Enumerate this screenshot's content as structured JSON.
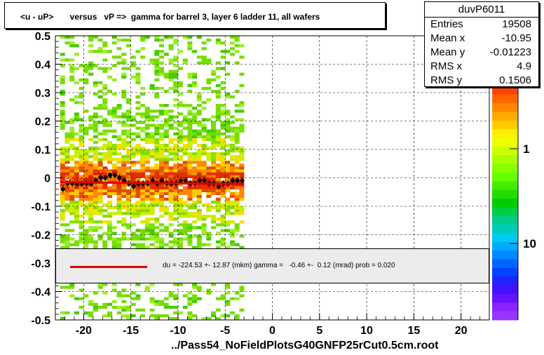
{
  "title": "<u - uP>       versus   vP =>  gamma for barrel 3, layer 6 ladder 11, all wafers",
  "stats": {
    "name": "duvP6011",
    "entries_label": "Entries",
    "entries": "19508",
    "meanx_label": "Mean x",
    "meanx": "-10.95",
    "meany_label": "Mean y",
    "meany": "-0.01223",
    "rmsx_label": "RMS x",
    "rmsx": "4.9",
    "rmsy_label": "RMS y",
    "rmsy": "0.1506"
  },
  "fit_text": "du = -224.53 +- 12.87 (mkm) gamma =   -0.46 +-  0.12 (mrad) prob = 0.020",
  "xlabel": "../Pass54_NoFieldPlotsG40GNFP25rCut0.5cm.root",
  "colors": {
    "fit_line": "#e00000",
    "marker": "#000000",
    "open_marker": "#e00000"
  },
  "chart_data": {
    "type": "heatmap",
    "xlim": [
      -23,
      23
    ],
    "ylim": [
      -0.5,
      0.5
    ],
    "x_ticks": [
      -20,
      -15,
      -10,
      -5,
      0,
      5,
      10,
      15,
      20
    ],
    "y_ticks": [
      -0.5,
      -0.4,
      -0.3,
      -0.2,
      -0.1,
      0,
      0.1,
      0.2,
      0.3,
      0.4,
      0.5
    ],
    "y_tick_labels": [
      "-0.5",
      "-0.4",
      "-0.3",
      "-0.2",
      "-0.1",
      "0",
      "0.1",
      "0.2",
      "0.3",
      "0.4",
      "0.5"
    ],
    "data_x_range": [
      -22.5,
      -3
    ],
    "colorbar_labels": [
      "1",
      "10"
    ],
    "grid": true,
    "profile_filled": {
      "x": [
        -22.2,
        -21.7,
        -21.2,
        -20.7,
        -20.2,
        -19.7,
        -19.2,
        -18.7,
        -18.2,
        -17.7,
        -17.2,
        -16.7,
        -16.2,
        -15.7,
        -15.2,
        -14.7,
        -14.2,
        -13.7,
        -13.2,
        -12.7,
        -12.2,
        -11.7,
        -11.2,
        -10.7,
        -10.2,
        -9.7,
        -9.2,
        -8.7,
        -8.2,
        -7.7,
        -7.2,
        -6.7,
        -6.2,
        -5.7,
        -5.2,
        -4.7,
        -4.2,
        -3.7,
        -3.2
      ],
      "y": [
        -0.04,
        -0.02,
        -0.02,
        -0.02,
        -0.02,
        -0.02,
        -0.02,
        -0.01,
        0.0,
        0.0,
        0.01,
        0.01,
        0.0,
        -0.01,
        -0.02,
        -0.03,
        -0.02,
        -0.02,
        -0.02,
        -0.01,
        -0.02,
        -0.01,
        -0.02,
        -0.02,
        -0.02,
        -0.01,
        -0.01,
        -0.02,
        -0.02,
        -0.01,
        -0.01,
        -0.02,
        -0.02,
        -0.03,
        -0.02,
        -0.02,
        -0.01,
        -0.01,
        -0.01
      ]
    },
    "profile_open": {
      "x": [
        -21.7,
        -21.2,
        -20.2,
        -19.7,
        -19.2,
        -18.7,
        -18.2,
        -17.7,
        -17.2,
        -16.7,
        -16.2,
        -15.7,
        -14.2,
        -12.2,
        -10.2,
        -8.2,
        -6.7,
        -5.2,
        -4.2
      ],
      "y": [
        -0.01,
        -0.01,
        -0.01,
        -0.01,
        0.0,
        0.02,
        0.02,
        0.03,
        0.02,
        0.02,
        0.0,
        -0.01,
        -0.02,
        -0.01,
        -0.02,
        -0.01,
        -0.01,
        -0.02,
        -0.02
      ]
    },
    "fit_line": {
      "x": [
        -22.5,
        -3
      ],
      "y": [
        -0.015,
        -0.022
      ]
    }
  }
}
